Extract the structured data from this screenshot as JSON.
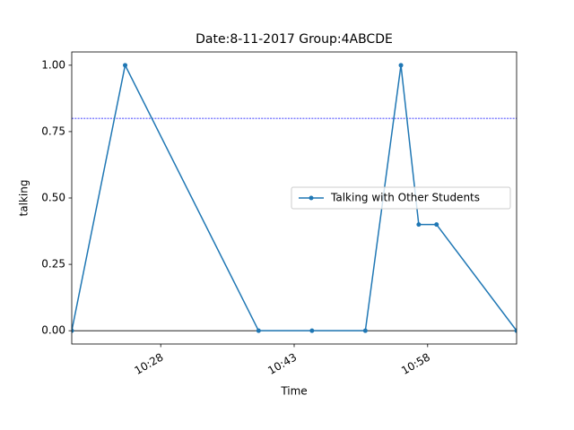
{
  "chart_data": {
    "type": "line",
    "title": "Date:8-11-2017  Group:4ABCDE",
    "x_label": "Time",
    "y_label": "talking",
    "x": [
      "10:18",
      "10:24",
      "10:39",
      "10:45",
      "10:51",
      "10:55",
      "10:57",
      "10:59",
      "11:08"
    ],
    "series": [
      {
        "name": "Talking with Other Students",
        "color": "#1f77b4",
        "values": [
          0,
          1,
          0,
          0,
          0,
          1,
          0.4,
          0.4,
          0
        ]
      }
    ],
    "xlim": [
      "10:18",
      "11:08"
    ],
    "xticks": [
      "10:28",
      "10:43",
      "10:58"
    ],
    "ylim": [
      -0.05,
      1.05
    ],
    "yticks": [
      {
        "value": 0,
        "label": "0.00"
      },
      {
        "value": 0.25,
        "label": "0.25"
      },
      {
        "value": 0.5,
        "label": "0.50"
      },
      {
        "value": 0.75,
        "label": "0.75"
      },
      {
        "value": 1,
        "label": "1.00"
      }
    ],
    "hlines": [
      {
        "value": 0.8,
        "color": "blue",
        "dashed": true
      },
      {
        "value": 0,
        "color": "black",
        "dashed": false
      }
    ],
    "legend": "center right",
    "grid": false
  }
}
